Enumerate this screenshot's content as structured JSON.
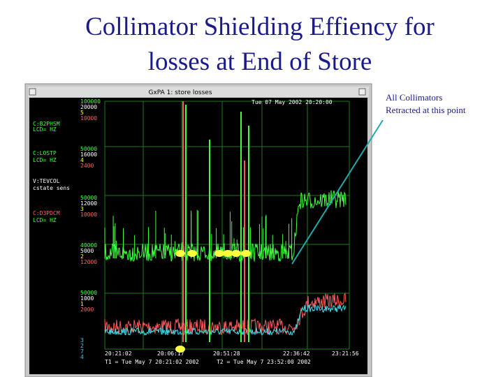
{
  "slide": {
    "title": [
      "Collimator Shielding Effiency for",
      "losses at End of Store"
    ],
    "callout": [
      "All Collimators",
      "Retracted at this point"
    ]
  },
  "window": {
    "title": "GxPA 1: store losses",
    "timestamp": "Tue 07 May 2002 20:20:00",
    "channels": [
      "C:B2PHSM",
      "LCD=      HZ",
      "C:LOSTP",
      "LCD=      HZ",
      "V:TEVCOL",
      "cstate  sens",
      "C:D3PDCM",
      "LCD=      HZ"
    ],
    "scales": [
      [
        "100000",
        "20000",
        "5",
        "10000"
      ],
      [
        "50000",
        "16000",
        "4",
        "2400"
      ],
      [
        "50000",
        "12000",
        "3",
        "10000"
      ],
      [
        "40000",
        "5000",
        "2",
        "12000"
      ],
      [
        "50000",
        "1000",
        "1",
        "2000"
      ],
      [
        "3",
        "2",
        "7",
        "4"
      ]
    ],
    "time_labels": [
      "20:21:02",
      "20:06:17",
      "20:51:28",
      "22:36:42",
      "23:21:56"
    ],
    "footer": [
      "T1 = Tue May  7 20:21:02 2002",
      "T2 = Tue May  7 23:52:00 2002"
    ]
  }
}
